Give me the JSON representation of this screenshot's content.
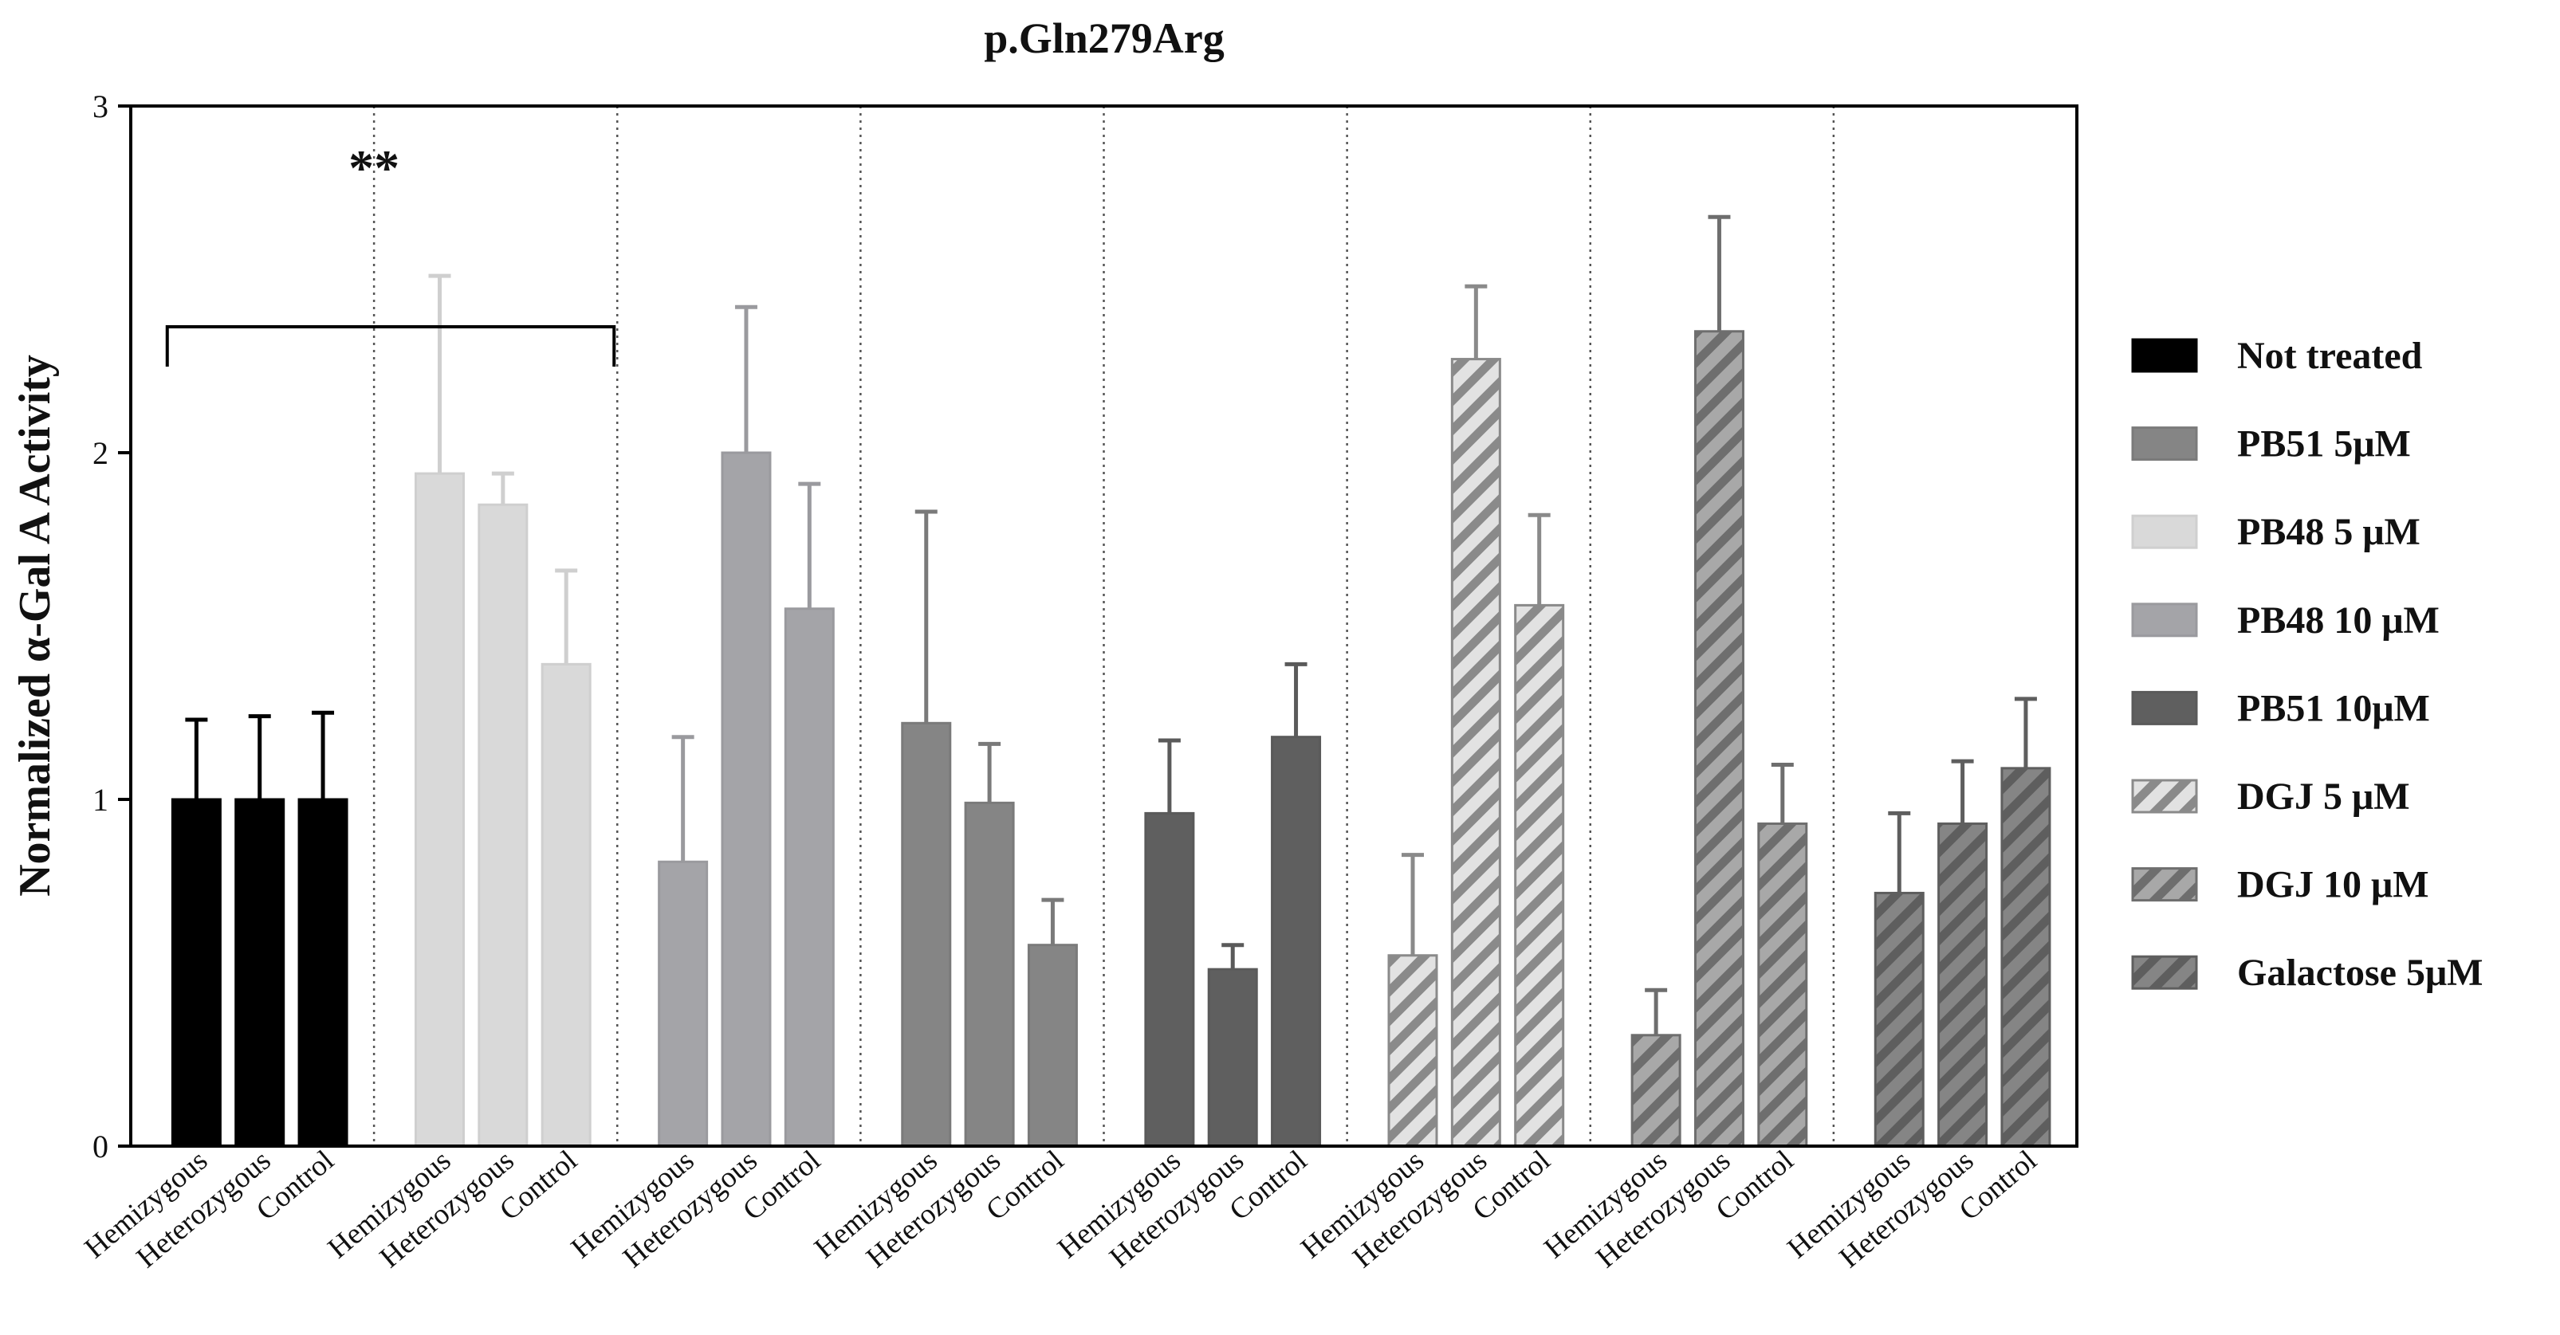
{
  "chart_data": {
    "type": "bar",
    "title": "p.Gln279Arg",
    "y_label": "Normalized α-Gal A Activity",
    "categories": [
      "Hemizygous",
      "Heterozygous",
      "Control"
    ],
    "series": [
      {
        "name": "Not treated",
        "color": "#000000",
        "line_color": "#000000",
        "hatch": false,
        "values": [
          1.0,
          1.0,
          1.0
        ],
        "errors": [
          0.23,
          0.24,
          0.25
        ]
      },
      {
        "name": "PB51 5μM",
        "color": "#858585",
        "line_color": "#7a7a7a",
        "hatch": false,
        "values": [
          1.22,
          0.99,
          0.58
        ],
        "errors": [
          0.61,
          0.17,
          0.13
        ]
      },
      {
        "name": "PB48 5 μM",
        "color": "#d9d9d9",
        "line_color": "#cfcfcf",
        "hatch": false,
        "values": [
          1.94,
          1.85,
          1.39
        ],
        "errors": [
          0.57,
          0.09,
          0.27
        ]
      },
      {
        "name": "PB48 10 μM",
        "color": "#a4a4a8",
        "line_color": "#9a9a9e",
        "hatch": false,
        "values": [
          0.82,
          2.0,
          1.55
        ],
        "errors": [
          0.36,
          0.42,
          0.36
        ]
      },
      {
        "name": "PB51 10μM",
        "color": "#5f5f5f",
        "line_color": "#5a5a5a",
        "hatch": false,
        "values": [
          0.96,
          0.51,
          1.18
        ],
        "errors": [
          0.21,
          0.07,
          0.21
        ]
      },
      {
        "name": "DGJ 5 μM",
        "color": "#e2e2e2",
        "line_color": "#8a8a8a",
        "hatch": true,
        "values": [
          0.55,
          2.27,
          1.56
        ],
        "errors": [
          0.29,
          0.21,
          0.26
        ]
      },
      {
        "name": "DGJ 10 μM",
        "color": "#a8a8a8",
        "line_color": "#6e6e6e",
        "hatch": true,
        "values": [
          0.32,
          2.35,
          0.93
        ],
        "errors": [
          0.13,
          0.33,
          0.17
        ]
      },
      {
        "name": "Galactose 5μM",
        "color": "#858585",
        "line_color": "#5e5e5e",
        "hatch": true,
        "values": [
          0.73,
          0.93,
          1.09
        ],
        "errors": [
          0.23,
          0.18,
          0.2
        ]
      }
    ],
    "ylim": [
      0,
      3
    ],
    "yticks": [
      0,
      1,
      2,
      3
    ],
    "significance": "**",
    "legend": "right"
  }
}
